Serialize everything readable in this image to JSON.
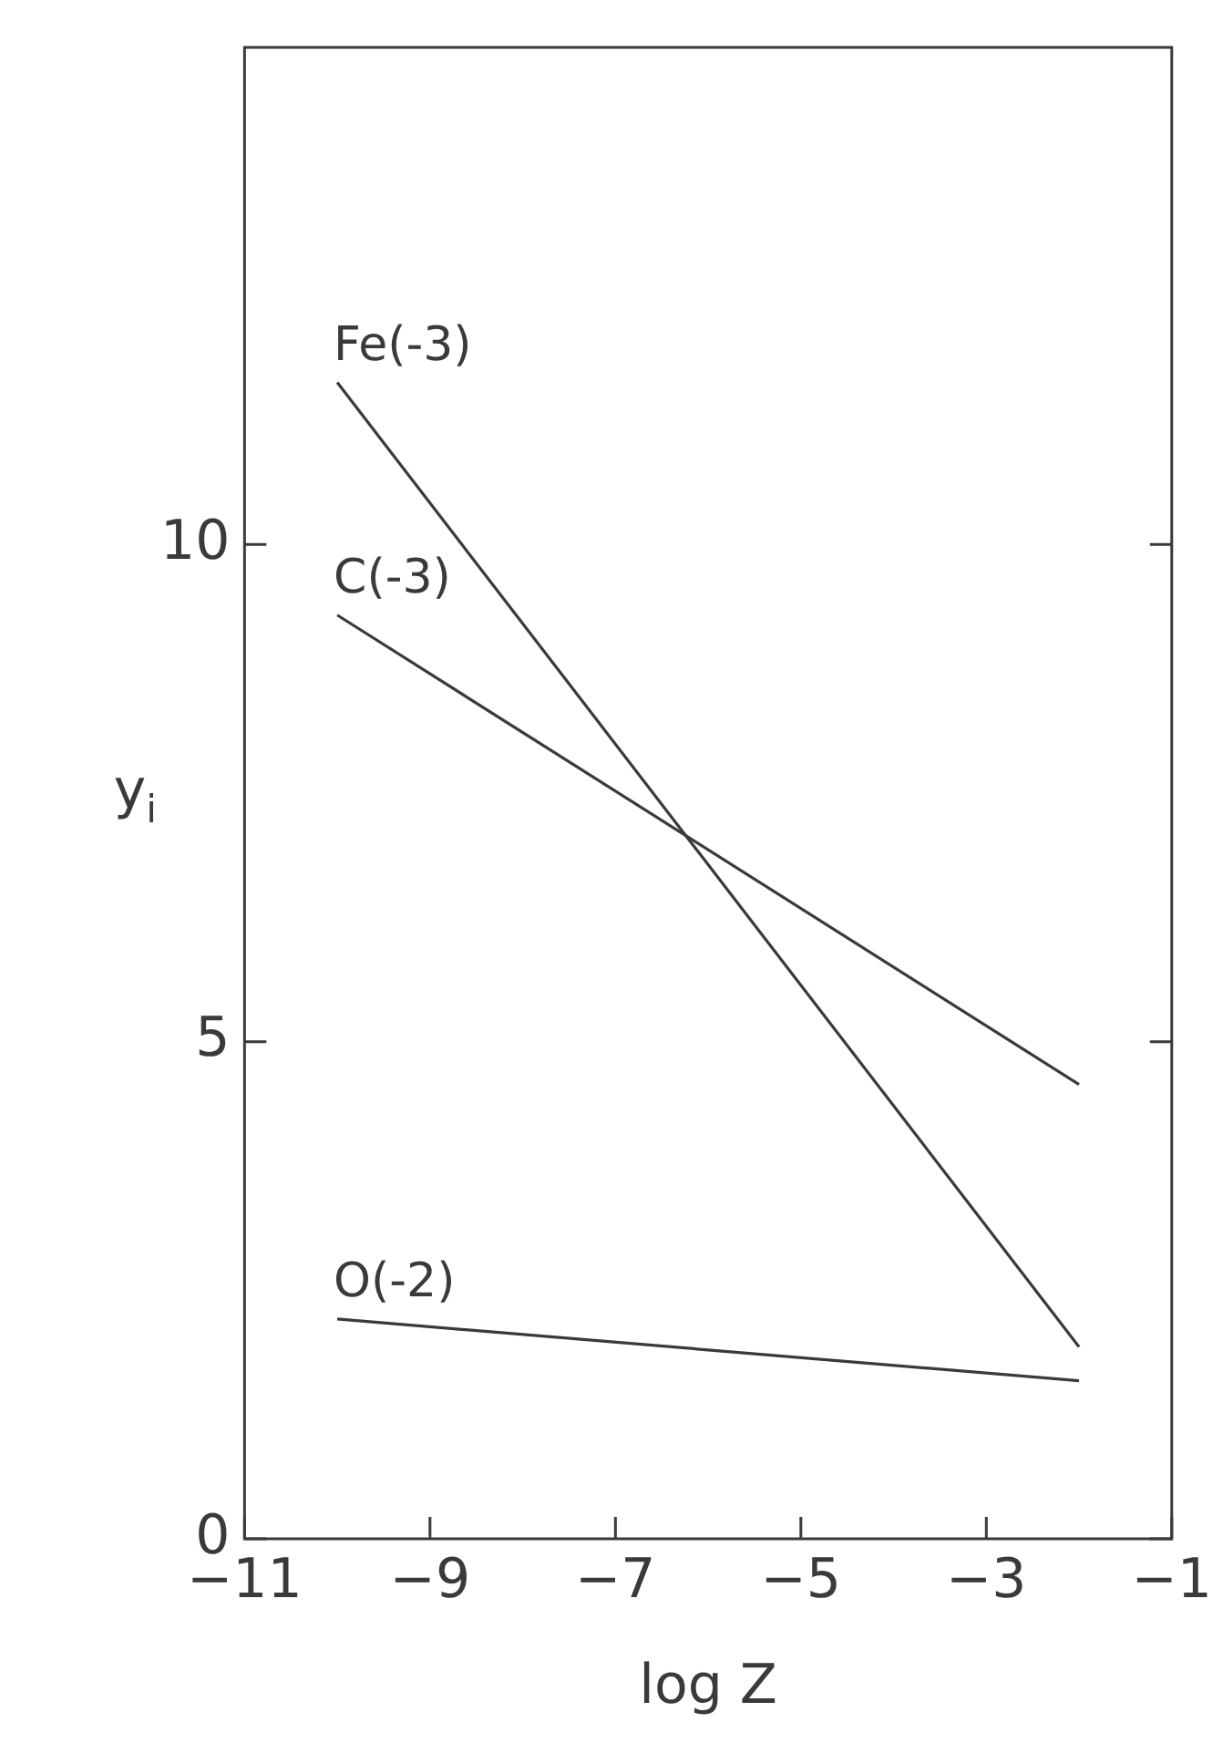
{
  "chart_data": {
    "type": "line",
    "xlabel": "log Z",
    "ylabel": "y$_{i}$",
    "x": [
      -10,
      -2
    ],
    "series": [
      {
        "name": "Fe(-3)",
        "color": "#3a3a3a",
        "values": [
          11.63,
          1.93
        ]
      },
      {
        "name": "C(-3)",
        "color": "#3a3a3a",
        "values": [
          9.29,
          4.57
        ]
      },
      {
        "name": "O(-2)",
        "color": "#3a3a3a",
        "values": [
          2.21,
          1.59
        ]
      }
    ],
    "xlim": [
      -11,
      -1
    ],
    "xticks": [
      -11,
      -9,
      -7,
      -5,
      -3,
      -1
    ],
    "ylim": [
      0,
      15
    ],
    "yticks": [
      0,
      5,
      10
    ],
    "grid": false,
    "legend": false,
    "marker": "none",
    "line_style": "solid"
  }
}
